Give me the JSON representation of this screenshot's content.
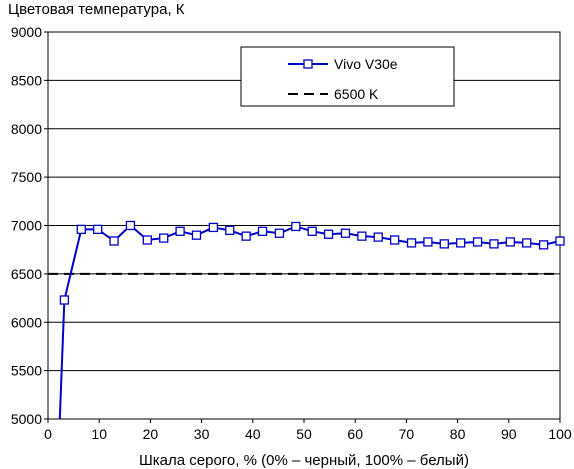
{
  "chart_data": {
    "type": "line",
    "title": "",
    "ylabel": "Цветовая температура, К",
    "xlabel": "Шкала серого, % (0% – черный, 100% – белый)",
    "xlim": [
      0,
      100
    ],
    "ylim": [
      5000,
      9000
    ],
    "xticks": [
      0,
      10,
      20,
      30,
      40,
      50,
      60,
      70,
      80,
      90,
      100
    ],
    "yticks": [
      5000,
      5500,
      6000,
      6500,
      7000,
      7500,
      8000,
      8500,
      9000
    ],
    "grid": "horizontal",
    "legend_position": "top-center",
    "series": [
      {
        "name": "Vivo V30e",
        "color": "#0000cc",
        "marker": "square",
        "x": [
          3.2,
          6.5,
          9.7,
          12.9,
          16.1,
          19.4,
          22.6,
          25.8,
          29.0,
          32.3,
          35.5,
          38.7,
          41.9,
          45.2,
          48.4,
          51.6,
          54.8,
          58.1,
          61.3,
          64.5,
          67.7,
          71.0,
          74.2,
          77.4,
          80.6,
          83.9,
          87.1,
          90.3,
          93.5,
          96.8,
          100
        ],
        "y": [
          6230,
          6960,
          6960,
          6840,
          7000,
          6850,
          6870,
          6940,
          6900,
          6980,
          6950,
          6890,
          6940,
          6920,
          6990,
          6940,
          6910,
          6920,
          6890,
          6880,
          6850,
          6820,
          6830,
          6810,
          6820,
          6830,
          6810,
          6830,
          6820,
          6800,
          6840
        ],
        "line_start": [
          2.3,
          5000
        ]
      },
      {
        "name": "6500 K",
        "color": "#000000",
        "dashed": true,
        "x": [
          0,
          100
        ],
        "y": [
          6500,
          6500
        ]
      }
    ]
  }
}
